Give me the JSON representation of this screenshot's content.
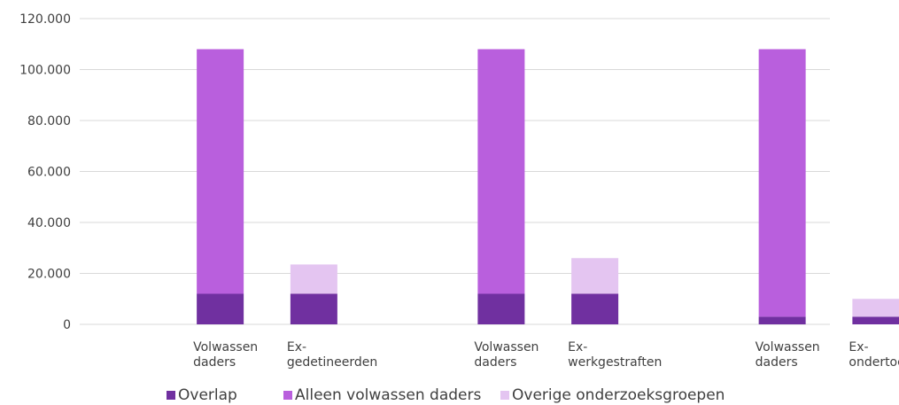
{
  "chart_data": {
    "type": "bar",
    "stacked": true,
    "categories": [
      "Volwassen daders",
      "Ex-gedetineerden",
      "Volwassen daders",
      "Ex-werkgestraften",
      "Volwassen daders",
      "Ex-ondertoezichtgestelden"
    ],
    "category_lines": [
      [
        "Volwassen",
        "daders"
      ],
      [
        "Ex-",
        "gedetineerden"
      ],
      [
        "Volwassen",
        "daders"
      ],
      [
        "Ex-",
        "werkgestraften"
      ],
      [
        "Volwassen",
        "daders"
      ],
      [
        "Ex-",
        "ondertoezichtgestelden"
      ]
    ],
    "series": [
      {
        "name": "Overlap",
        "color": "#7030A0",
        "values": [
          12000,
          12000,
          12000,
          12000,
          3000,
          3000
        ]
      },
      {
        "name": "Alleen volwassen daders",
        "color": "#B95FDD",
        "values": [
          96000,
          0,
          96000,
          0,
          105000,
          0
        ]
      },
      {
        "name": "Overige onderzoeksgroepen",
        "color": "#E4C5F1",
        "values": [
          0,
          11500,
          0,
          14000,
          0,
          7000
        ]
      }
    ],
    "ylim": [
      0,
      120000
    ],
    "yticks": [
      0,
      20000,
      40000,
      60000,
      80000,
      100000,
      120000
    ],
    "ytick_labels": [
      "0",
      "20.000",
      "40.000",
      "60.000",
      "80.000",
      "100.000",
      "120.000"
    ],
    "grid": true,
    "legend_position": "bottom",
    "gridline_color": "#D9D9D9"
  }
}
